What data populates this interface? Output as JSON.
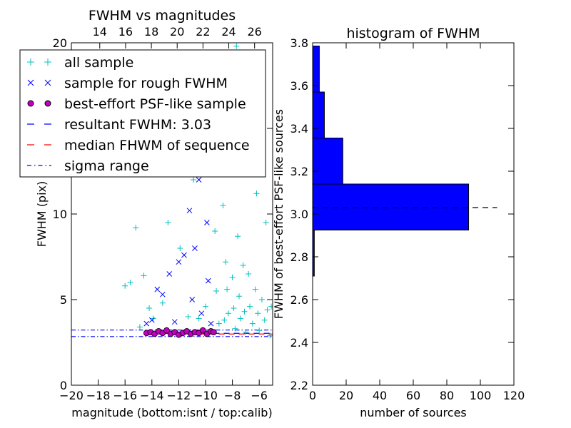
{
  "chart_data": [
    {
      "type": "scatter",
      "title": "FWHM vs magnitudes",
      "xlabel": "magnitude (bottom:isnt / top:calib)",
      "ylabel": "FWHM (pix)",
      "xlim": [
        -20,
        -5
      ],
      "ylim": [
        0,
        20
      ],
      "top_xlim": [
        11.8,
        27.4
      ],
      "x_ticks": [
        "−20",
        "−18",
        "−16",
        "−14",
        "−12",
        "−10",
        "−8",
        "−6"
      ],
      "x_tick_values": [
        -20,
        -18,
        -16,
        -14,
        -12,
        -10,
        -8,
        -6
      ],
      "top_ticks": [
        "14",
        "16",
        "18",
        "20",
        "22",
        "24",
        "26"
      ],
      "top_tick_values": [
        14,
        16,
        18,
        20,
        22,
        24,
        26
      ],
      "y_ticks": [
        "0",
        "5",
        "10",
        "15",
        "20"
      ],
      "y_tick_values": [
        0,
        5,
        10,
        15,
        20
      ],
      "grid": false,
      "legend_position": "upper-left",
      "series": [
        {
          "name": "all sample",
          "marker": "+",
          "color": "#00bfbf",
          "x_range": [
            -16.2,
            -5
          ],
          "y_range": [
            2,
            20
          ],
          "values": [
            [
              -16.0,
              5.8
            ],
            [
              -15.6,
              6.0
            ],
            [
              -15.2,
              9.2
            ],
            [
              -14.9,
              3.4
            ],
            [
              -14.6,
              6.4
            ],
            [
              -14.2,
              4.5
            ],
            [
              -13.9,
              3.9
            ],
            [
              -13.2,
              4.8
            ],
            [
              -12.8,
              9.5
            ],
            [
              -12.6,
              17.0
            ],
            [
              -11.9,
              8.0
            ],
            [
              -11.6,
              15.5
            ],
            [
              -11.3,
              4.0
            ],
            [
              -10.9,
              12.0
            ],
            [
              -10.5,
              3.9
            ],
            [
              -10.3,
              17.5
            ],
            [
              -10.0,
              4.6
            ],
            [
              -9.6,
              12.5
            ],
            [
              -9.3,
              9.0
            ],
            [
              -9.2,
              5.5
            ],
            [
              -9.0,
              3.6
            ],
            [
              -8.9,
              15.0
            ],
            [
              -8.7,
              10.5
            ],
            [
              -8.6,
              3.8
            ],
            [
              -8.5,
              7.2
            ],
            [
              -8.4,
              5.6
            ],
            [
              -8.3,
              4.2
            ],
            [
              -8.1,
              12.5
            ],
            [
              -8.0,
              6.3
            ],
            [
              -7.9,
              4.5
            ],
            [
              -7.8,
              3.3
            ],
            [
              -7.6,
              8.7
            ],
            [
              -7.5,
              5.2
            ],
            [
              -7.4,
              3.9
            ],
            [
              -7.2,
              7.0
            ],
            [
              -7.1,
              4.3
            ],
            [
              -7.0,
              3.1
            ],
            [
              -6.8,
              6.5
            ],
            [
              -6.7,
              4.6
            ],
            [
              -6.5,
              3.6
            ],
            [
              -6.3,
              5.6
            ],
            [
              -6.1,
              4.2
            ],
            [
              -6.0,
              3.2
            ],
            [
              -5.8,
              5.0
            ],
            [
              -5.6,
              3.8
            ],
            [
              -5.4,
              4.4
            ],
            [
              -5.2,
              2.9
            ],
            [
              -5.1,
              4.6
            ],
            [
              -7.7,
              19.8
            ],
            [
              -7.3,
              18.6
            ],
            [
              -6.9,
              17.4
            ],
            [
              -6.2,
              11.2
            ],
            [
              -5.5,
              9.5
            ],
            [
              -8.2,
              17.0
            ]
          ]
        },
        {
          "name": "sample for rough FWHM",
          "marker": "x",
          "color": "#0000ff",
          "x_range": [
            -14.5,
            -9.5
          ],
          "y_range": [
            2.8,
            15
          ],
          "values": [
            [
              -14.4,
              3.6
            ],
            [
              -14.0,
              3.8
            ],
            [
              -13.6,
              5.6
            ],
            [
              -13.2,
              5.3
            ],
            [
              -12.7,
              6.5
            ],
            [
              -12.3,
              3.7
            ],
            [
              -12.0,
              7.2
            ],
            [
              -11.6,
              7.6
            ],
            [
              -11.2,
              10.2
            ],
            [
              -11.0,
              5.0
            ],
            [
              -10.8,
              8.0
            ],
            [
              -10.5,
              12.0
            ],
            [
              -10.3,
              4.2
            ],
            [
              -10.1,
              13.5
            ],
            [
              -9.9,
              9.5
            ],
            [
              -9.8,
              6.1
            ],
            [
              -9.7,
              14.5
            ],
            [
              -9.6,
              3.6
            ]
          ]
        },
        {
          "name": "best-effort PSF-like sample",
          "marker": "o",
          "color": "#bf00bf",
          "x_range": [
            -14.5,
            -9.3
          ],
          "y_range": [
            2.9,
            3.3
          ],
          "values": [
            [
              -14.4,
              3.05
            ],
            [
              -14.1,
              3.1
            ],
            [
              -13.8,
              3.0
            ],
            [
              -13.5,
              3.15
            ],
            [
              -13.2,
              3.05
            ],
            [
              -12.9,
              3.2
            ],
            [
              -12.6,
              3.0
            ],
            [
              -12.3,
              3.1
            ],
            [
              -12.0,
              2.95
            ],
            [
              -11.7,
              3.05
            ],
            [
              -11.4,
              3.15
            ],
            [
              -11.1,
              3.0
            ],
            [
              -10.8,
              3.1
            ],
            [
              -10.5,
              3.05
            ],
            [
              -10.2,
              3.2
            ],
            [
              -9.9,
              3.0
            ],
            [
              -9.6,
              3.15
            ],
            [
              -9.4,
              3.1
            ]
          ]
        }
      ],
      "reference_lines": [
        {
          "name": "resultant FWHM: 3.03",
          "style": "dashed",
          "color": "#0000ff",
          "y": 3.03
        },
        {
          "name": "median FHWM of sequence",
          "style": "dashed",
          "color": "#ff0000",
          "y": 3.03
        },
        {
          "name": "sigma range",
          "style": "dash-dot",
          "color": "#0000ff",
          "y_values": [
            2.84,
            3.22
          ]
        }
      ]
    },
    {
      "type": "bar",
      "orientation": "horizontal",
      "title": "histogram of FWHM",
      "xlabel": "number of sources",
      "ylabel": "FWHM of best-effort PSF-like sources",
      "xlim": [
        0,
        120
      ],
      "ylim": [
        2.2,
        3.8
      ],
      "x_ticks": [
        "0",
        "20",
        "40",
        "60",
        "80",
        "100",
        "120"
      ],
      "x_tick_values": [
        0,
        20,
        40,
        60,
        80,
        100,
        120
      ],
      "y_ticks": [
        "2.2",
        "2.4",
        "2.6",
        "2.8",
        "3.0",
        "3.2",
        "3.4",
        "3.6",
        "3.8"
      ],
      "y_tick_values": [
        2.2,
        2.4,
        2.6,
        2.8,
        3.0,
        3.2,
        3.4,
        3.6,
        3.8
      ],
      "bin_edges": [
        2.71,
        2.925,
        3.14,
        3.355,
        3.57,
        3.785
      ],
      "counts": [
        1,
        93,
        18,
        7,
        4
      ],
      "bar_color": "#0000ff",
      "reference_line": {
        "y": 3.03,
        "style": "dashed",
        "color": "#000000",
        "x_range": [
          0,
          110
        ]
      }
    }
  ]
}
